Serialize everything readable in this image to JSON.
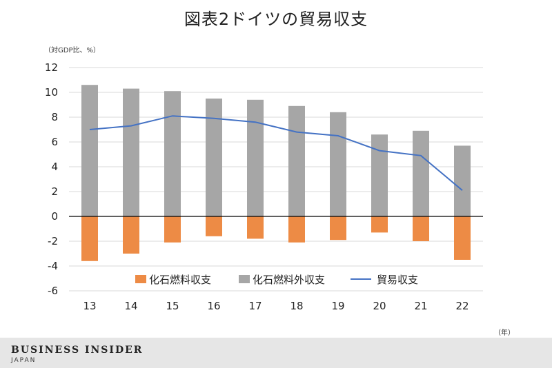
{
  "title": "図表2ドイツの貿易収支",
  "unit_label": "（対GDP比、%）",
  "x_unit_label": "（年）",
  "footer": {
    "brand": "BUSINESS INSIDER",
    "region": "JAPAN"
  },
  "colors": {
    "fossil": "#ED8B45",
    "non_fossil": "#A6A6A6",
    "trade": "#4472C4",
    "zero_line": "#000000",
    "grid": "#D9D9D9"
  },
  "chart_data": {
    "type": "bar",
    "categories": [
      "13",
      "14",
      "15",
      "16",
      "17",
      "18",
      "19",
      "20",
      "21",
      "22"
    ],
    "series": [
      {
        "name": "化石燃料収支",
        "kind": "bar",
        "values": [
          -3.6,
          -3.0,
          -2.1,
          -1.6,
          -1.8,
          -2.1,
          -1.9,
          -1.3,
          -2.0,
          -3.5
        ]
      },
      {
        "name": "化石燃料外収支",
        "kind": "bar",
        "values": [
          10.6,
          10.3,
          10.1,
          9.5,
          9.4,
          8.9,
          8.4,
          6.6,
          6.9,
          5.7
        ]
      },
      {
        "name": "貿易収支",
        "kind": "line",
        "values": [
          7.0,
          7.3,
          8.1,
          7.9,
          7.6,
          6.8,
          6.5,
          5.3,
          4.9,
          2.1
        ]
      }
    ],
    "ylim": [
      -6,
      12
    ],
    "yticks": [
      12,
      10,
      8,
      6,
      4,
      2,
      0,
      -2,
      -4,
      -6
    ],
    "ylabel": "（対GDP比、%）",
    "xlabel": "（年）",
    "grid": true,
    "legend": "bottom-center"
  }
}
